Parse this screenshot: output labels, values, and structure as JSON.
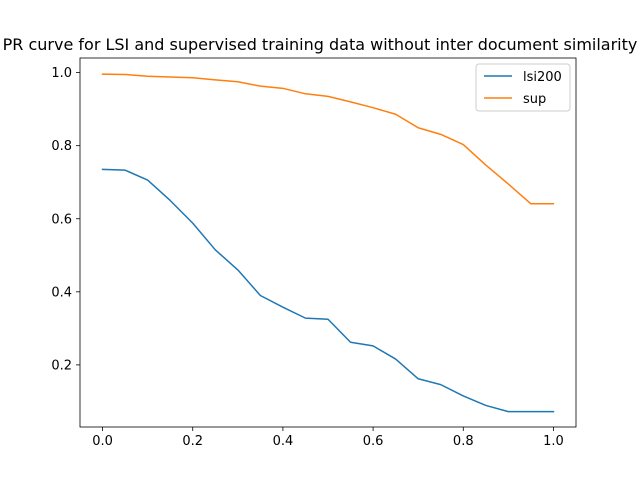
{
  "chart_data": {
    "type": "line",
    "title": "PR curve for LSI and supervised training data without inter document similarity",
    "xlabel": "",
    "ylabel": "",
    "xlim": [
      -0.05,
      1.05
    ],
    "ylim": [
      0.03,
      1.04
    ],
    "xticks": [
      "0.0",
      "0.2",
      "0.4",
      "0.6",
      "0.8",
      "1.0"
    ],
    "yticks": [
      "0.2",
      "0.4",
      "0.6",
      "0.8",
      "1.0"
    ],
    "grid": false,
    "legend_position": "top-right",
    "x": [
      0.0,
      0.05,
      0.1,
      0.15,
      0.2,
      0.25,
      0.3,
      0.35,
      0.4,
      0.45,
      0.5,
      0.55,
      0.6,
      0.65,
      0.7,
      0.75,
      0.8,
      0.85,
      0.9,
      0.95,
      1.0
    ],
    "series": [
      {
        "name": "lsi200",
        "color": "#1f77b4",
        "values": [
          0.735,
          0.733,
          0.706,
          0.65,
          0.588,
          0.515,
          0.46,
          0.39,
          0.358,
          0.328,
          0.325,
          0.262,
          0.252,
          0.216,
          0.162,
          0.146,
          0.115,
          0.089,
          0.072,
          0.072,
          0.072
        ]
      },
      {
        "name": "sup",
        "color": "#ff7f0e",
        "values": [
          0.996,
          0.995,
          0.99,
          0.988,
          0.986,
          0.98,
          0.975,
          0.963,
          0.957,
          0.942,
          0.935,
          0.92,
          0.904,
          0.886,
          0.849,
          0.831,
          0.803,
          0.747,
          0.695,
          0.641,
          0.641
        ]
      }
    ]
  }
}
